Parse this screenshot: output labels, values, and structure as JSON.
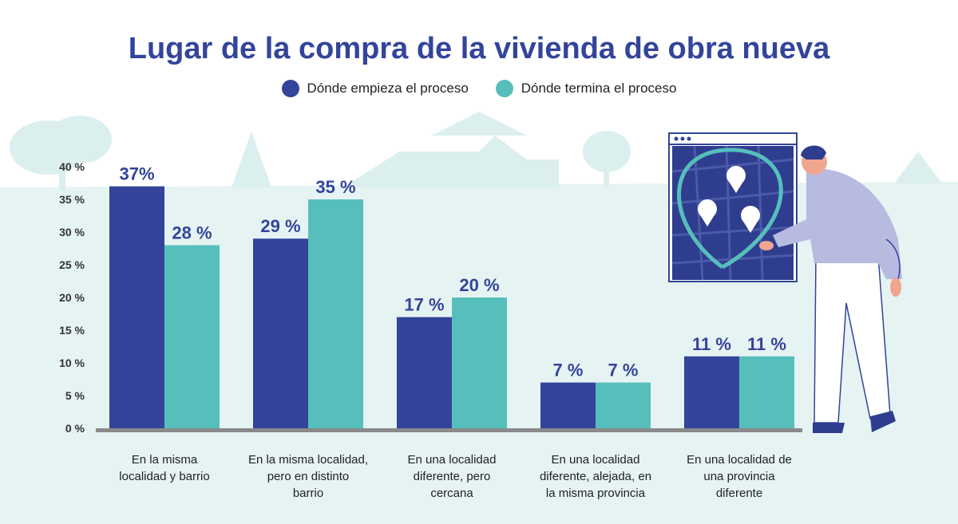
{
  "chart_data": {
    "type": "bar",
    "title": "Lugar de la compra de la vivienda de obra nueva",
    "categories": [
      [
        "En la misma",
        "localidad y barrio"
      ],
      [
        "En la misma localidad,",
        "pero en distinto",
        "barrio"
      ],
      [
        "En una localidad",
        "diferente, pero",
        "cercana"
      ],
      [
        "En una localidad",
        "diferente, alejada, en",
        "la misma provincia"
      ],
      [
        "En una localidad de",
        "una provincia",
        "diferente"
      ]
    ],
    "series": [
      {
        "name": "Dónde empieza el proceso",
        "values": [
          37,
          29,
          17,
          7,
          11
        ],
        "labels": [
          "37%",
          "29 %",
          "17 %",
          "7 %",
          "11 %"
        ],
        "color": "#33449a"
      },
      {
        "name": "Dónde termina el proceso",
        "values": [
          28,
          35,
          20,
          7,
          11
        ],
        "labels": [
          "28 %",
          "35 %",
          "20 %",
          "7 %",
          "11 %"
        ],
        "color": "#56bfbc"
      }
    ],
    "yticks": [
      "0 %",
      "5 %",
      "10 %",
      "15 %",
      "20 %",
      "25 %",
      "30 %",
      "35 %",
      "40 %"
    ],
    "ylim": [
      0,
      40
    ],
    "legend": "top-center",
    "grid": false
  },
  "colors": {
    "title": "#33449a",
    "background_scene": "#e6f3f3",
    "axis": "#8a8a8a"
  },
  "illustration": {
    "icons": [
      "map-icon",
      "location-pin-icon",
      "person-icon",
      "tree-icon",
      "house-icon"
    ]
  }
}
